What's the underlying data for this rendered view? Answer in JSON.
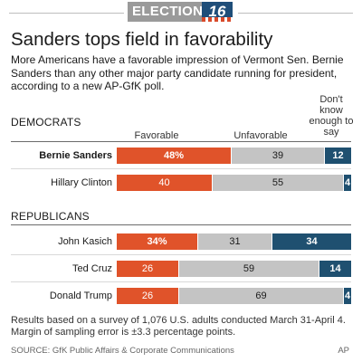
{
  "logo": {
    "word": "ELECTION",
    "year": "16"
  },
  "headline": "Sanders tops field in favorability",
  "intro": "More Americans have a favorable impression of Vermont Sen. Bernie Sanders than any other major party candidate running for president, according to a new AP-GfK poll.",
  "columns": {
    "favorable": "Favorable",
    "unfavorable": "Unfavorable",
    "dont_know": "Don't know enough to say"
  },
  "colors": {
    "favorable": "#e0532a",
    "unfavorable": "#c4c4c4",
    "dont_know": "#1f5070"
  },
  "chart_data": {
    "type": "bar",
    "stacked": true,
    "orientation": "horizontal",
    "title": "Sanders tops field in favorability",
    "series_names": [
      "Favorable",
      "Unfavorable",
      "Don't know enough to say"
    ],
    "groups": [
      {
        "name": "DEMOCRATS",
        "rows": [
          {
            "label": "Bernie Sanders",
            "favorable": 48,
            "unfavorable": 39,
            "dont_know": 12,
            "fav_text": "48%",
            "highlight": true
          },
          {
            "label": "Hillary Clinton",
            "favorable": 40,
            "unfavorable": 55,
            "dont_know": 4,
            "fav_text": "40",
            "highlight": false
          }
        ]
      },
      {
        "name": "REPUBLICANS",
        "rows": [
          {
            "label": "John Kasich",
            "favorable": 34,
            "unfavorable": 31,
            "dont_know": 34,
            "fav_text": "34%",
            "highlight": false
          },
          {
            "label": "Ted Cruz",
            "favorable": 26,
            "unfavorable": 59,
            "dont_know": 14,
            "fav_text": "26",
            "highlight": false
          },
          {
            "label": "Donald Trump",
            "favorable": 26,
            "unfavorable": 69,
            "dont_know": 4,
            "fav_text": "26",
            "highlight": false
          }
        ]
      }
    ]
  },
  "footnote": "Results based on a survey of 1,076 U.S. adults conducted March 31-April 4. Margin of sampling error is ±3.3 percentage points.",
  "source": "SOURCE: GfK Public Affairs & Corporate Communications",
  "credit": "AP"
}
